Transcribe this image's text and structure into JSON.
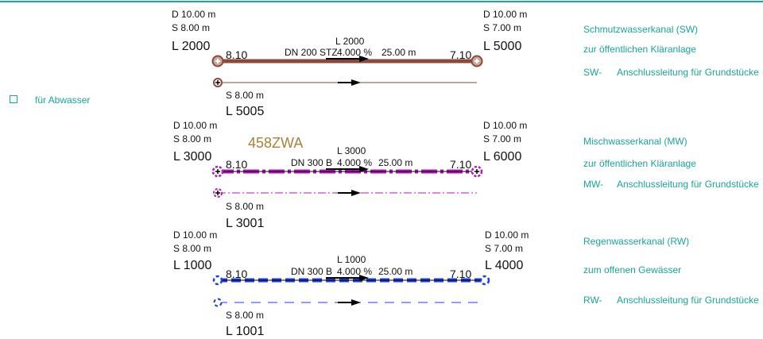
{
  "legend": {
    "label": "für Abwasser"
  },
  "stamp": "458ZWA",
  "sections": [
    {
      "id": "sw",
      "top": {
        "d": "D 10.00 m",
        "s": "S 8.00 m",
        "l": "L 2000"
      },
      "right": {
        "d": "D 10.00 m",
        "s": "S 7.00 m",
        "l": "L 5000"
      },
      "bottom": {
        "s": "S 8.00 m",
        "l": "L 5005"
      },
      "left_level": "8.10",
      "right_level": "7.10",
      "pipe": {
        "dn": "DN 200",
        "mat": "STZ",
        "slope": "4.000 %",
        "length": "25.00 m",
        "id": "L 2000"
      },
      "desc": {
        "title": "Schmutzwasserkanal (SW)",
        "sub": "zur öffentlichen Kläranlage",
        "code": "SW-",
        "conn": "Anschlussleitung für Grundstücke"
      },
      "color": "#8a4a38"
    },
    {
      "id": "mw",
      "top": {
        "d": "D 10.00 m",
        "s": "S 8.00 m",
        "l": "L 3000"
      },
      "right": {
        "d": "D 10.00 m",
        "s": "S 7.00 m",
        "l": "L 6000"
      },
      "bottom": {
        "s": "S 8.00 m",
        "l": "L 3001"
      },
      "left_level": "8.10",
      "right_level": "7.10",
      "pipe": {
        "dn": "DN 300",
        "mat": "B",
        "slope": "4.000 %",
        "length": "25.00 m",
        "id": "L 3000"
      },
      "desc": {
        "title": "Mischwasserkanal (MW)",
        "sub": "zur öffentlichen Kläranlage",
        "code": "MW-",
        "conn": "Anschlussleitung für Grundstücke"
      },
      "color": "#b01ab6"
    },
    {
      "id": "rw",
      "top": {
        "d": "D 10.00 m",
        "s": "S 8.00 m",
        "l": "L 1000"
      },
      "right": {
        "d": "D 10.00 m",
        "s": "S 7.00 m",
        "l": "L 4000"
      },
      "bottom": {
        "s": "S 8.00 m",
        "l": "L 1001"
      },
      "left_level": "8.10",
      "right_level": "7.10",
      "pipe": {
        "dn": "DN 300",
        "mat": "B",
        "slope": "4.000 %",
        "length": "25.00 m",
        "id": "L 1000"
      },
      "desc": {
        "title": "Regenwasserkanal (RW)",
        "sub": "zum offenen Gewässer",
        "code": "RW-",
        "conn": "Anschlussleitung für Grundstücke"
      },
      "color": "#1f3fe0"
    }
  ]
}
